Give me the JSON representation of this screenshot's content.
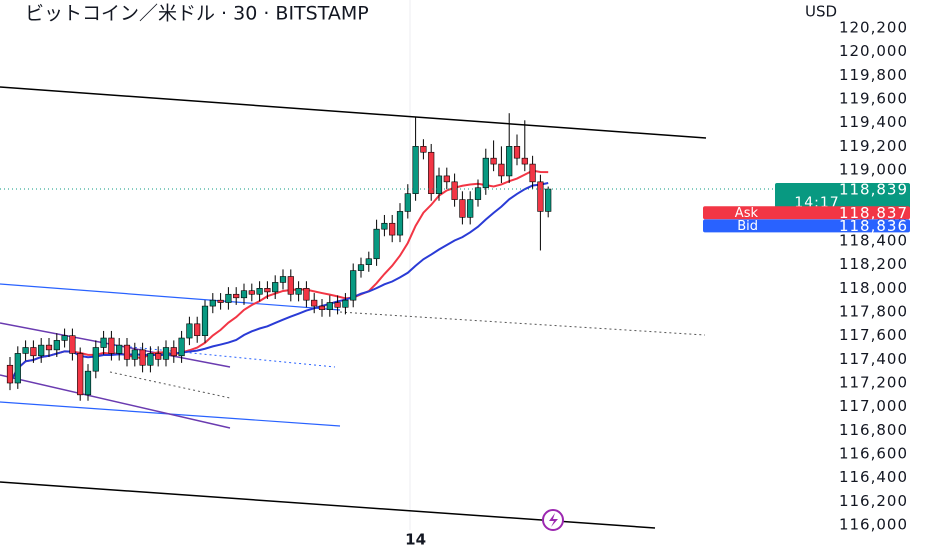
{
  "chart_data": {
    "type": "candlestick",
    "title": "ビットコイン／米ドル · 30 · BITSTAMP",
    "currency": "USD",
    "up_color": "#089981",
    "down_color": "#f23645",
    "categories": [
      null,
      null,
      null,
      null,
      null,
      null,
      null,
      null,
      null,
      null,
      null,
      null,
      null,
      null,
      null,
      null,
      null,
      null,
      null,
      null,
      null,
      null,
      null,
      null,
      null,
      null,
      null,
      null,
      null,
      null,
      null,
      null,
      null,
      null,
      null,
      null,
      null,
      null,
      null,
      null,
      null,
      null,
      null,
      null,
      null,
      null,
      null,
      null,
      null,
      null,
      null,
      null,
      "14",
      null,
      null,
      null,
      null,
      null,
      null,
      null,
      null,
      null,
      null,
      null,
      null,
      null,
      null,
      null,
      null,
      null
    ],
    "open": [
      117350,
      117200,
      117450,
      117500,
      117430,
      117520,
      117480,
      117560,
      117600,
      117450,
      117100,
      117300,
      117500,
      117580,
      117450,
      117520,
      117400,
      117480,
      117350,
      117450,
      117400,
      117500,
      117430,
      117580,
      117700,
      117600,
      117850,
      117900,
      117880,
      117950,
      117920,
      117980,
      117950,
      118000,
      117970,
      118050,
      118100,
      117950,
      118000,
      117900,
      117850,
      117820,
      117880,
      117840,
      117900,
      118150,
      118200,
      118250,
      118500,
      118550,
      118450,
      118650,
      118800,
      119200,
      119150,
      118800,
      118950,
      118900,
      118750,
      118600,
      118750,
      118850,
      119100,
      119050,
      118950,
      119200,
      119100,
      119050,
      118900,
      118650
    ],
    "high": [
      117420,
      117510,
      117560,
      117560,
      117580,
      117580,
      117620,
      117660,
      117660,
      117500,
      117360,
      117560,
      117640,
      117640,
      117580,
      117580,
      117540,
      117540,
      117510,
      117510,
      117560,
      117560,
      117640,
      117760,
      117760,
      117900,
      117960,
      117960,
      118010,
      118010,
      118040,
      118040,
      118060,
      118060,
      118110,
      118160,
      118160,
      118060,
      118060,
      117960,
      117910,
      117940,
      117940,
      117960,
      118210,
      118260,
      118310,
      118580,
      118620,
      118620,
      118720,
      118880,
      119450,
      119260,
      119220,
      119020,
      119020,
      118970,
      118820,
      118820,
      118920,
      119180,
      119250,
      119200,
      119480,
      119300,
      119420,
      119120,
      118960,
      118860
    ],
    "low": [
      117140,
      117150,
      117390,
      117370,
      117370,
      117420,
      117420,
      117500,
      117390,
      117050,
      117050,
      117240,
      117440,
      117390,
      117390,
      117340,
      117340,
      117290,
      117290,
      117340,
      117340,
      117370,
      117370,
      117520,
      117540,
      117540,
      117790,
      117820,
      117820,
      117860,
      117860,
      117890,
      117890,
      117910,
      117910,
      117990,
      117890,
      117890,
      117840,
      117790,
      117760,
      117760,
      117780,
      117780,
      117840,
      118090,
      118140,
      118190,
      118440,
      118390,
      118390,
      118590,
      118740,
      119090,
      118740,
      118740,
      118840,
      118690,
      118540,
      118540,
      118690,
      118790,
      118990,
      118890,
      118890,
      119040,
      118990,
      118840,
      118320,
      118600
    ],
    "close": [
      117200,
      117450,
      117500,
      117430,
      117520,
      117480,
      117560,
      117600,
      117450,
      117100,
      117300,
      117500,
      117580,
      117450,
      117520,
      117400,
      117480,
      117350,
      117450,
      117400,
      117500,
      117430,
      117580,
      117700,
      117600,
      117850,
      117900,
      117880,
      117950,
      117920,
      117980,
      117950,
      118000,
      117970,
      118050,
      118100,
      117950,
      118000,
      117900,
      117850,
      117820,
      117880,
      117840,
      117900,
      118150,
      118200,
      118250,
      118500,
      118550,
      118450,
      118650,
      118800,
      119200,
      119150,
      118800,
      118950,
      118900,
      118750,
      118600,
      118750,
      118850,
      119100,
      119050,
      118950,
      119200,
      119100,
      119050,
      118900,
      118650,
      118839
    ],
    "ylim": [
      115950,
      120330
    ],
    "yticks": [
      {
        "value": 116000,
        "label": "116,000"
      },
      {
        "value": 116200,
        "label": "116,200"
      },
      {
        "value": 116400,
        "label": "116,400"
      },
      {
        "value": 116600,
        "label": "116,600"
      },
      {
        "value": 116800,
        "label": "116,800"
      },
      {
        "value": 117000,
        "label": "117,000"
      },
      {
        "value": 117200,
        "label": "117,200"
      },
      {
        "value": 117400,
        "label": "117,400"
      },
      {
        "value": 117600,
        "label": "117,600"
      },
      {
        "value": 117800,
        "label": "117,800"
      },
      {
        "value": 118000,
        "label": "118,000"
      },
      {
        "value": 118200,
        "label": "118,200"
      },
      {
        "value": 118400,
        "label": "118,400"
      },
      {
        "value": 118600,
        "label": "118,600"
      },
      {
        "value": 118800,
        "label": "118,800"
      },
      {
        "value": 119000,
        "label": "119,000"
      },
      {
        "value": 119200,
        "label": "119,200"
      },
      {
        "value": 119400,
        "label": "119,400"
      },
      {
        "value": 119600,
        "label": "119,600"
      },
      {
        "value": 119800,
        "label": "119,800"
      },
      {
        "value": 120000,
        "label": "120,000"
      },
      {
        "value": 120200,
        "label": "120,200"
      }
    ],
    "last_price": {
      "value": 118839,
      "label": "118,839",
      "countdown": "14:17"
    },
    "ask": {
      "name": "Ask",
      "value": 118837,
      "label": "118,837"
    },
    "bid": {
      "name": "Bid",
      "value": 118836,
      "label": "118,836"
    }
  }
}
